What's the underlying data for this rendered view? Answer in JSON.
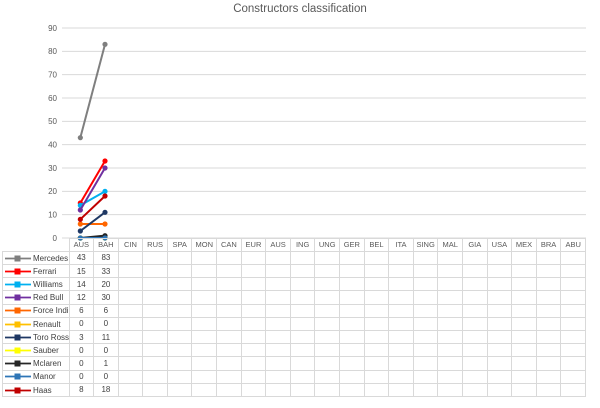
{
  "title": "Constructors classification",
  "chart_data": {
    "type": "line",
    "title": "Constructors classification",
    "categories": [
      "AUS",
      "BAH",
      "CIN",
      "RUS",
      "SPA",
      "MON",
      "CAN",
      "EUR",
      "AUS",
      "ING",
      "UNG",
      "GER",
      "BEL",
      "ITA",
      "SING",
      "MAL",
      "GIA",
      "USA",
      "MEX",
      "BRA",
      "ABU"
    ],
    "series": [
      {
        "name": "Mercedes",
        "color": "#7F7F7F",
        "values": [
          43,
          83
        ]
      },
      {
        "name": "Ferrari",
        "color": "#FF0000",
        "values": [
          15,
          33
        ]
      },
      {
        "name": "Williams",
        "color": "#00B0F0",
        "values": [
          14,
          20
        ]
      },
      {
        "name": "Red Bull",
        "color": "#7030A0",
        "values": [
          12,
          30
        ]
      },
      {
        "name": "Force India",
        "color": "#FF6600",
        "values": [
          6,
          6
        ]
      },
      {
        "name": "Renault",
        "color": "#FFC000",
        "values": [
          0,
          0
        ]
      },
      {
        "name": "Toro Rosso",
        "color": "#1F3864",
        "values": [
          3,
          11
        ]
      },
      {
        "name": "Sauber",
        "color": "#FFFF00",
        "values": [
          0,
          0
        ]
      },
      {
        "name": "Mclaren",
        "color": "#262626",
        "values": [
          0,
          1
        ]
      },
      {
        "name": "Manor",
        "color": "#2E75B6",
        "values": [
          0,
          0
        ]
      },
      {
        "name": "Haas",
        "color": "#C00000",
        "values": [
          8,
          18
        ]
      }
    ],
    "ylim": [
      0,
      90
    ],
    "ytick_interval": 10,
    "grid": true,
    "legend_position": "table-left",
    "gridline_color": "#D9D9D9",
    "axis_text_color": "#595959"
  }
}
